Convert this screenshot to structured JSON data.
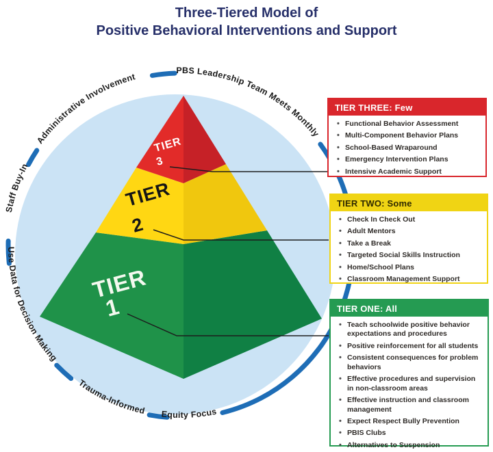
{
  "title": {
    "line1": "Three-Tiered Model of",
    "line2": "Positive Behavioral Interventions and Support"
  },
  "circle_labels": {
    "top_right": "PBS Leadership Team Meets Monthly",
    "top_left": "Administrative Involvement",
    "left": "Staff Buy-In",
    "lower_left": "Use Data for Decision Making",
    "bottom_left": "Trauma-Informed",
    "bottom": "Equity Focus"
  },
  "pyramid": {
    "tier3": {
      "word": "TIER",
      "number": "3"
    },
    "tier2": {
      "word": "TIER",
      "number": "2"
    },
    "tier1": {
      "word": "TIER",
      "number": "1"
    }
  },
  "callouts": [
    {
      "header": "TIER THREE: Few",
      "items": [
        "Functional Behavior Assessment",
        "Multi-Component Behavior Plans",
        "School-Based Wraparound",
        "Emergency Intervention Plans",
        "Intensive Academic Support"
      ]
    },
    {
      "header": "TIER TWO: Some",
      "items": [
        "Check In Check Out",
        "Adult Mentors",
        "Take a Break",
        "Targeted Social Skills Instruction",
        "Home/School Plans",
        "Classroom Management Support"
      ]
    },
    {
      "header": "TIER ONE: All",
      "items": [
        "Teach schoolwide positive behavior expectations and procedures",
        "Positive reinforcement for all students",
        "Consistent consequences for problem behaviors",
        "Effective procedures and supervision in non-classroom areas",
        "Effective instruction and classroom management",
        "Expect Respect Bully Prevention",
        "PBIS Clubs",
        "Alternatives to Suspension"
      ]
    }
  ],
  "colors": {
    "title_navy": "#262f69",
    "circle_fill": "#cbe3f5",
    "arc_blue": "#1e6db6",
    "tier3_red": "#d9262c",
    "tier2_yellow": "#f0d414",
    "tier1_green": "#259b52"
  }
}
